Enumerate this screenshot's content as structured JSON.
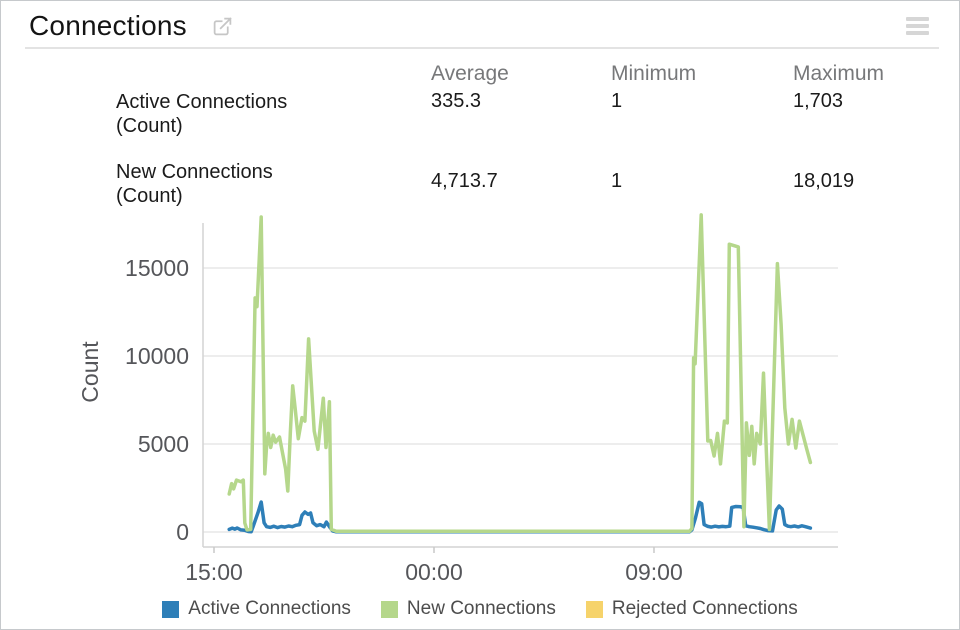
{
  "header": {
    "title": "Connections",
    "open_icon": "external-link",
    "menu_icon": "hamburger-menu"
  },
  "stats": {
    "columns": [
      "Average",
      "Minimum",
      "Maximum"
    ],
    "rows": [
      {
        "label": "Active Connections",
        "unit": "(Count)",
        "average": "335.3",
        "minimum": "1",
        "maximum": "1,703"
      },
      {
        "label": "New Connections",
        "unit": "(Count)",
        "average": "4,713.7",
        "minimum": "1",
        "maximum": "18,019"
      }
    ]
  },
  "chart_data": {
    "type": "line",
    "title": "",
    "xlabel": "",
    "ylabel": "Count",
    "grid": true,
    "legend_position": "bottom",
    "ylim": [
      0,
      18300
    ],
    "y_ticks": [
      0,
      5000,
      10000,
      15000
    ],
    "xlim_hours_from_1500": [
      -0.45,
      25.52
    ],
    "x_ticks": [
      {
        "t": 0,
        "label": "15:00"
      },
      {
        "t": 9,
        "label": "00:00"
      },
      {
        "t": 18,
        "label": "09:00"
      }
    ],
    "series": [
      {
        "name": "Active Connections",
        "color": "#2e7fb8",
        "points": [
          [
            0.62,
            150
          ],
          [
            0.75,
            220
          ],
          [
            0.85,
            160
          ],
          [
            0.95,
            230
          ],
          [
            1.1,
            120
          ],
          [
            1.25,
            100
          ],
          [
            1.4,
            30
          ],
          [
            1.52,
            10
          ],
          [
            1.65,
            500
          ],
          [
            1.8,
            1100
          ],
          [
            1.93,
            1703
          ],
          [
            2.05,
            520
          ],
          [
            2.15,
            300
          ],
          [
            2.3,
            260
          ],
          [
            2.45,
            330
          ],
          [
            2.6,
            250
          ],
          [
            2.75,
            310
          ],
          [
            2.9,
            280
          ],
          [
            3.05,
            340
          ],
          [
            3.2,
            300
          ],
          [
            3.35,
            380
          ],
          [
            3.5,
            420
          ],
          [
            3.6,
            950
          ],
          [
            3.72,
            1135
          ],
          [
            3.85,
            1000
          ],
          [
            3.95,
            1080
          ],
          [
            4.05,
            520
          ],
          [
            4.2,
            360
          ],
          [
            4.35,
            420
          ],
          [
            4.5,
            300
          ],
          [
            4.6,
            560
          ],
          [
            4.75,
            250
          ],
          [
            4.85,
            60
          ],
          [
            5.0,
            10
          ],
          [
            8.0,
            10
          ],
          [
            12.0,
            10
          ],
          [
            16.0,
            10
          ],
          [
            19.45,
            10
          ],
          [
            19.55,
            120
          ],
          [
            19.7,
            800
          ],
          [
            19.85,
            1690
          ],
          [
            19.95,
            1600
          ],
          [
            20.05,
            420
          ],
          [
            20.2,
            320
          ],
          [
            20.35,
            280
          ],
          [
            20.5,
            330
          ],
          [
            20.65,
            290
          ],
          [
            20.8,
            320
          ],
          [
            20.95,
            300
          ],
          [
            21.1,
            330
          ],
          [
            21.18,
            1400
          ],
          [
            21.35,
            1450
          ],
          [
            21.55,
            1430
          ],
          [
            21.65,
            1380
          ],
          [
            21.75,
            350
          ],
          [
            21.9,
            300
          ],
          [
            22.05,
            270
          ],
          [
            22.2,
            240
          ],
          [
            22.35,
            200
          ],
          [
            22.5,
            130
          ],
          [
            22.65,
            80
          ],
          [
            22.85,
            60
          ],
          [
            23.0,
            1250
          ],
          [
            23.12,
            1480
          ],
          [
            23.25,
            1300
          ],
          [
            23.35,
            420
          ],
          [
            23.48,
            330
          ],
          [
            23.6,
            300
          ],
          [
            23.75,
            340
          ],
          [
            23.9,
            290
          ],
          [
            24.05,
            350
          ],
          [
            24.2,
            300
          ],
          [
            24.4,
            220
          ]
        ]
      },
      {
        "name": "New Connections",
        "color": "#b5d78b",
        "points": [
          [
            0.62,
            2160
          ],
          [
            0.72,
            2750
          ],
          [
            0.8,
            2450
          ],
          [
            0.92,
            2950
          ],
          [
            1.1,
            2850
          ],
          [
            1.2,
            2950
          ],
          [
            1.26,
            510
          ],
          [
            1.35,
            120
          ],
          [
            1.5,
            150
          ],
          [
            1.68,
            13300
          ],
          [
            1.76,
            12800
          ],
          [
            1.93,
            17900
          ],
          [
            2.08,
            3300
          ],
          [
            2.15,
            4900
          ],
          [
            2.22,
            5600
          ],
          [
            2.32,
            4800
          ],
          [
            2.42,
            5500
          ],
          [
            2.52,
            5100
          ],
          [
            2.68,
            5400
          ],
          [
            2.93,
            3580
          ],
          [
            3.02,
            2330
          ],
          [
            3.12,
            5600
          ],
          [
            3.22,
            8300
          ],
          [
            3.32,
            7000
          ],
          [
            3.45,
            5300
          ],
          [
            3.6,
            6500
          ],
          [
            3.72,
            6300
          ],
          [
            3.87,
            10970
          ],
          [
            4.1,
            5740
          ],
          [
            4.25,
            4700
          ],
          [
            4.47,
            7600
          ],
          [
            4.58,
            4800
          ],
          [
            4.72,
            7400
          ],
          [
            4.8,
            150
          ],
          [
            5.0,
            40
          ],
          [
            8.0,
            40
          ],
          [
            12.0,
            40
          ],
          [
            16.0,
            40
          ],
          [
            19.45,
            40
          ],
          [
            19.55,
            200
          ],
          [
            19.62,
            9890
          ],
          [
            19.68,
            9550
          ],
          [
            19.93,
            18019
          ],
          [
            20.2,
            5170
          ],
          [
            20.32,
            5200
          ],
          [
            20.46,
            4320
          ],
          [
            20.6,
            5600
          ],
          [
            20.72,
            3870
          ],
          [
            20.88,
            6300
          ],
          [
            21.0,
            6200
          ],
          [
            21.08,
            16350
          ],
          [
            21.45,
            16200
          ],
          [
            21.68,
            300
          ],
          [
            21.78,
            6200
          ],
          [
            21.9,
            4350
          ],
          [
            22.0,
            6000
          ],
          [
            22.1,
            3870
          ],
          [
            22.2,
            5600
          ],
          [
            22.35,
            5000
          ],
          [
            22.48,
            9030
          ],
          [
            22.6,
            4500
          ],
          [
            22.72,
            150
          ],
          [
            23.05,
            15250
          ],
          [
            23.2,
            11800
          ],
          [
            23.35,
            7050
          ],
          [
            23.5,
            5000
          ],
          [
            23.65,
            6400
          ],
          [
            23.8,
            4770
          ],
          [
            23.95,
            6300
          ],
          [
            24.1,
            5500
          ],
          [
            24.25,
            4700
          ],
          [
            24.4,
            3950
          ]
        ]
      },
      {
        "name": "Rejected Connections",
        "color": "#f6d36b",
        "points": []
      }
    ]
  },
  "legend": {
    "items": [
      {
        "label": "Active Connections",
        "color": "#2e7fb8"
      },
      {
        "label": "New Connections",
        "color": "#b5d78b"
      },
      {
        "label": "Rejected Connections",
        "color": "#f6d36b"
      }
    ]
  },
  "style_colors": {
    "grid_line": "#e7e7e7",
    "axis_line": "#d4d4d4",
    "tick_mark": "#c9c9c9",
    "axis_text": "#55565a"
  }
}
